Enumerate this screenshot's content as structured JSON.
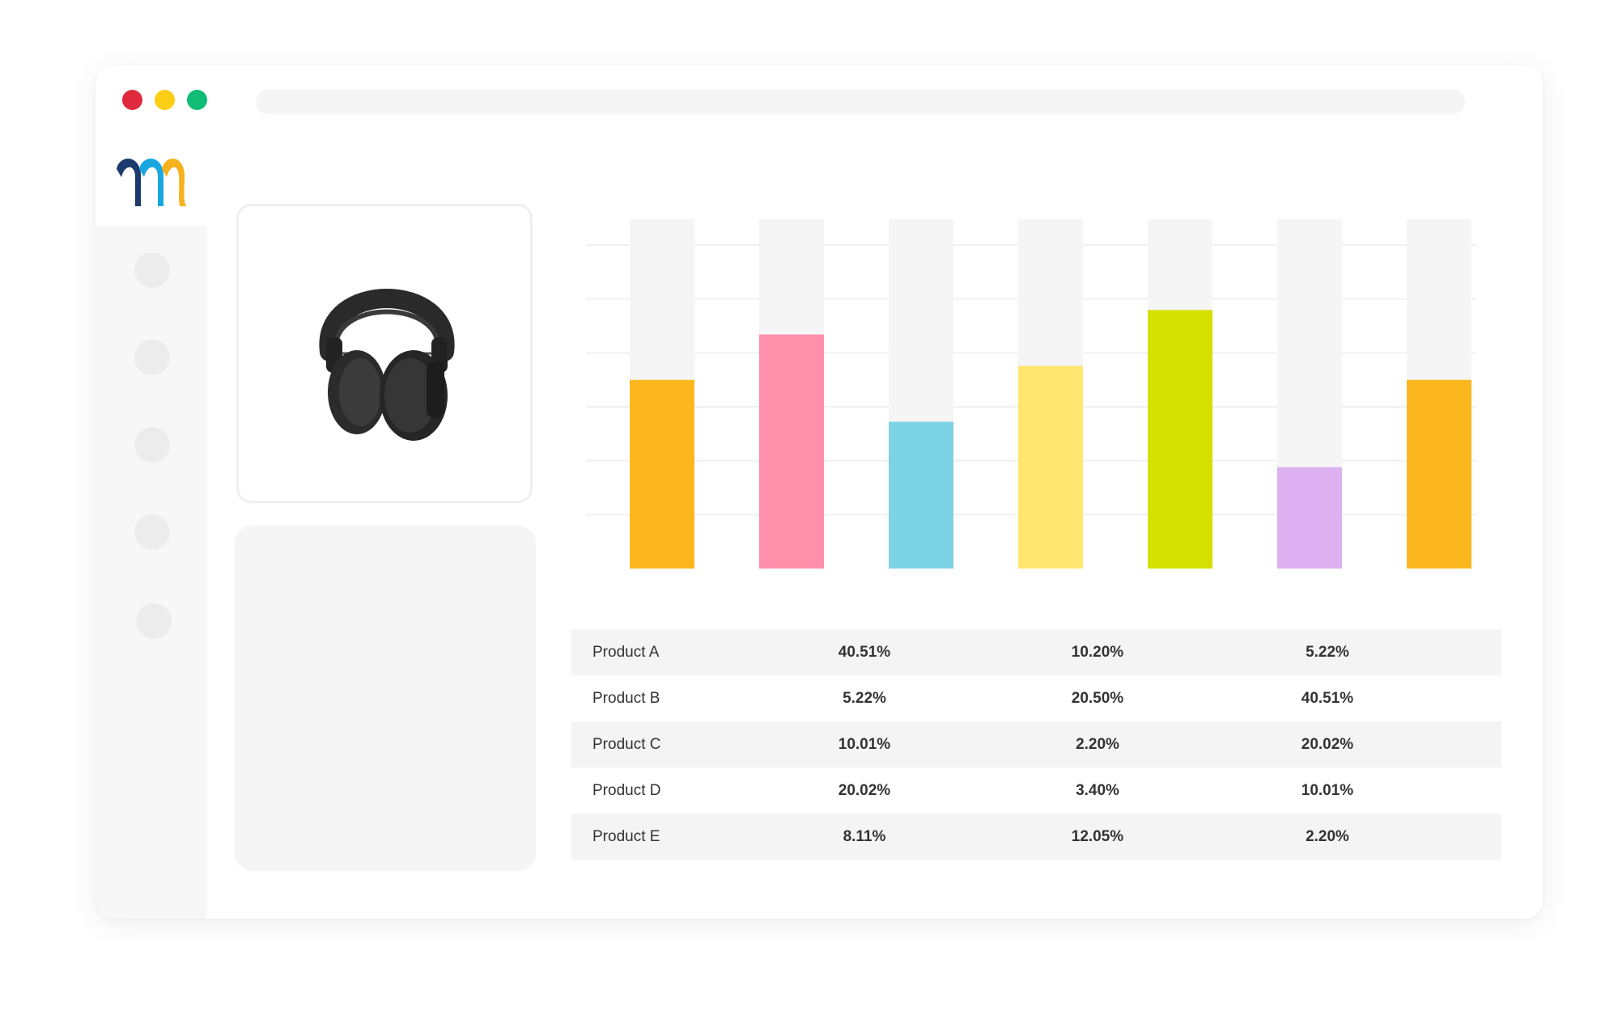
{
  "window": {
    "traffic_lights": {
      "close_color": "#e0293d",
      "minimize_color": "#fccf14",
      "maximize_color": "#0fbd74"
    }
  },
  "logo": {
    "colors": [
      "#1c3a6e",
      "#1aa7e0",
      "#f5b21c"
    ]
  },
  "product": {
    "icon": "headphones-icon"
  },
  "chart_data": {
    "type": "bar",
    "categories": [
      "",
      "",
      "",
      "",
      "",
      "",
      ""
    ],
    "values": [
      54,
      67,
      42,
      58,
      74,
      29,
      54
    ],
    "ylim": [
      0,
      100
    ],
    "colors": [
      "#fdb71e",
      "#ff8fab",
      "#7cd3e3",
      "#ffe670",
      "#d4e000",
      "#ddb1f1",
      "#fdb71e"
    ],
    "track_color": "#f5f5f5",
    "grid": true,
    "legend": "none"
  },
  "table": {
    "rows": [
      {
        "name": "Product A",
        "values": [
          "40.51%",
          "10.20%",
          "5.22%"
        ]
      },
      {
        "name": "Product B",
        "values": [
          "5.22%",
          "20.50%",
          "40.51%"
        ]
      },
      {
        "name": "Product C",
        "values": [
          "10.01%",
          "2.20%",
          "20.02%"
        ]
      },
      {
        "name": "Product D",
        "values": [
          "20.02%",
          "3.40%",
          "10.01%"
        ]
      },
      {
        "name": "Product E",
        "values": [
          "8.11%",
          "12.05%",
          "2.20%"
        ]
      }
    ]
  }
}
